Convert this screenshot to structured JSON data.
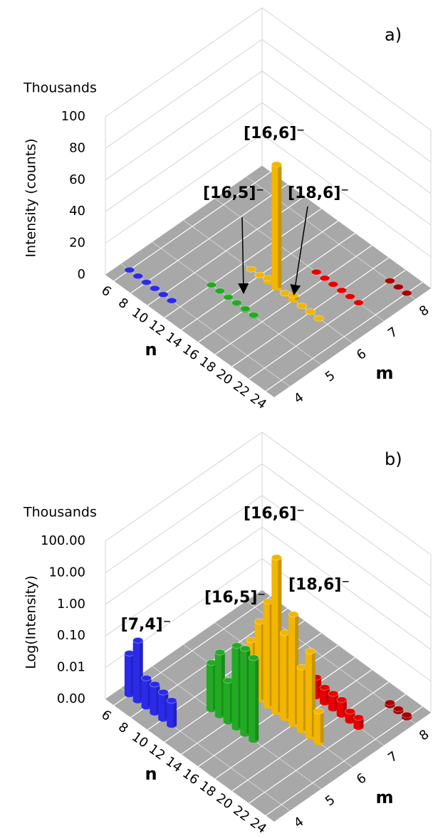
{
  "chart_data": [
    {
      "type": "bar3d",
      "panel": "a)",
      "unit_label": "Thousands",
      "ylabel": "Intensity (counts)",
      "xlabel": "n",
      "zlabel": "m",
      "yscale": "linear",
      "ylim": [
        0,
        100
      ],
      "yticks": [
        0,
        20,
        40,
        60,
        80,
        100
      ],
      "xlim": [
        5,
        25
      ],
      "xticks": [
        6,
        8,
        10,
        12,
        14,
        16,
        18,
        20,
        22,
        24
      ],
      "zlim": [
        3.5,
        8.5
      ],
      "zticks": [
        4,
        5,
        6,
        7,
        8
      ],
      "series": [
        {
          "z": 4,
          "color": "#2a2ae8",
          "x": [
            6,
            7,
            8,
            9,
            10,
            11
          ],
          "values": [
            0.02,
            0.08,
            0.008,
            0.008,
            0.007,
            0.006
          ]
        },
        {
          "z": 5,
          "color": "#22aa22",
          "x": [
            12,
            13,
            14,
            15,
            16,
            17
          ],
          "values": [
            0.03,
            0.1,
            0.02,
            0.4,
            0.5,
            0.4
          ]
        },
        {
          "z": 6,
          "color": "#f2b500",
          "x": [
            13,
            14,
            15,
            16,
            17,
            18,
            19,
            20,
            21
          ],
          "values": [
            0.05,
            0.3,
            2,
            78,
            0.5,
            3,
            0.1,
            0.5,
            0.01
          ]
        },
        {
          "z": 7,
          "color": "#e60000",
          "x": [
            17,
            18,
            19,
            20,
            21,
            22
          ],
          "values": [
            0.004,
            0.003,
            0.003,
            0.003,
            0.002,
            0.002
          ]
        },
        {
          "z": 8,
          "color": "#a80000",
          "x": [
            22,
            23,
            24
          ],
          "values": [
            0.0012,
            0.0012,
            0.0012
          ]
        }
      ],
      "annotations": [
        "[16,6]⁻",
        "[16,5]⁻",
        "[18,6]⁻"
      ]
    },
    {
      "type": "bar3d",
      "panel": "b)",
      "unit_label": "Thousands",
      "ylabel": "Log(Intensity)",
      "xlabel": "n",
      "zlabel": "m",
      "yscale": "log",
      "ylim": [
        0.001,
        100
      ],
      "yticks": [
        {
          "value": 0.001,
          "label": "0.00"
        },
        {
          "value": 0.01,
          "label": "0.01"
        },
        {
          "value": 0.1,
          "label": "0.10"
        },
        {
          "value": 1,
          "label": "1.00"
        },
        {
          "value": 10,
          "label": "10.00"
        },
        {
          "value": 100,
          "label": "100.00"
        }
      ],
      "xlim": [
        5,
        25
      ],
      "xticks": [
        6,
        8,
        10,
        12,
        14,
        16,
        18,
        20,
        22,
        24
      ],
      "zlim": [
        3.5,
        8.5
      ],
      "zticks": [
        4,
        5,
        6,
        7,
        8
      ],
      "series": [
        {
          "z": 4,
          "color": "#2a2ae8",
          "x": [
            6,
            7,
            8,
            9,
            10,
            11
          ],
          "values": [
            0.02,
            0.08,
            0.008,
            0.008,
            0.007,
            0.006
          ]
        },
        {
          "z": 5,
          "color": "#22aa22",
          "x": [
            12,
            13,
            14,
            15,
            16,
            17
          ],
          "values": [
            0.03,
            0.1,
            0.02,
            0.4,
            0.5,
            0.4
          ]
        },
        {
          "z": 6,
          "color": "#f2b500",
          "x": [
            13,
            14,
            15,
            16,
            17,
            18,
            19,
            20,
            21
          ],
          "values": [
            0.05,
            0.3,
            2,
            78,
            0.5,
            3,
            0.1,
            0.5,
            0.01
          ]
        },
        {
          "z": 7,
          "color": "#e60000",
          "x": [
            17,
            18,
            19,
            20,
            21,
            22
          ],
          "values": [
            0.004,
            0.003,
            0.003,
            0.003,
            0.002,
            0.002
          ]
        },
        {
          "z": 8,
          "color": "#a80000",
          "x": [
            22,
            23,
            24
          ],
          "values": [
            0.0012,
            0.0012,
            0.0012
          ]
        }
      ],
      "annotations": [
        "[7,4]⁻",
        "[16,5]⁻",
        "[16,6]⁻",
        "[18,6]⁻"
      ]
    }
  ]
}
